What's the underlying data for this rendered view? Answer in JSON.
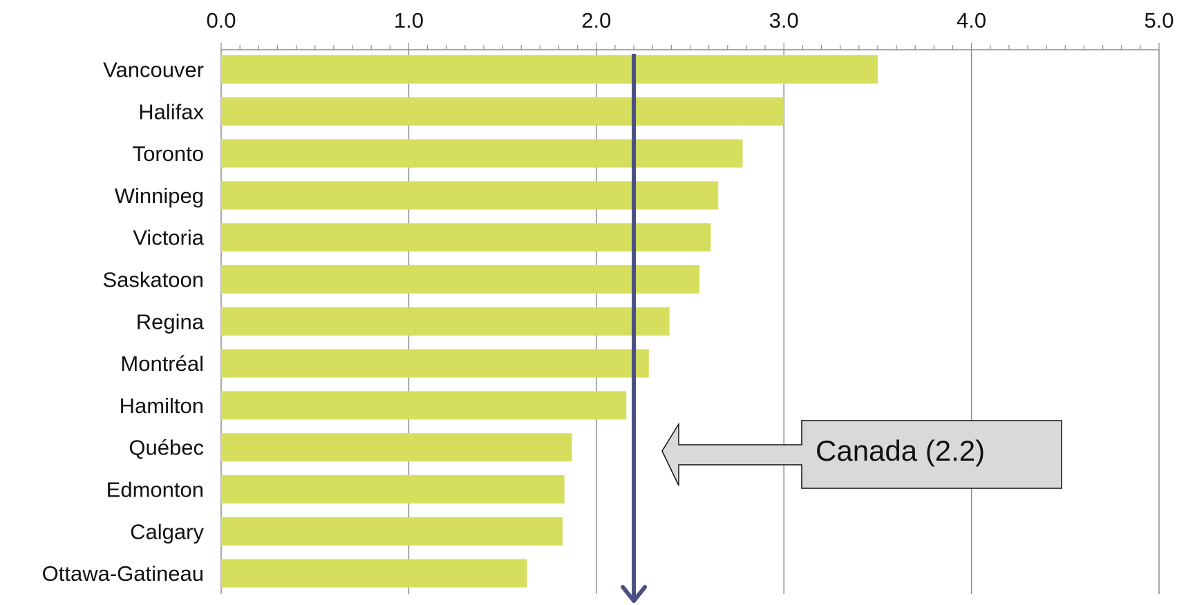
{
  "chart_data": {
    "type": "bar",
    "orientation": "horizontal",
    "categories": [
      "Vancouver",
      "Halifax",
      "Toronto",
      "Winnipeg",
      "Victoria",
      "Saskatoon",
      "Regina",
      "Montréal",
      "Hamilton",
      "Québec",
      "Edmonton",
      "Calgary",
      "Ottawa-Gatineau"
    ],
    "values": [
      3.5,
      3.0,
      2.78,
      2.65,
      2.61,
      2.55,
      2.39,
      2.28,
      2.16,
      1.87,
      1.83,
      1.82,
      1.63
    ],
    "xlim": [
      0,
      5
    ],
    "x_ticks": [
      "0.0",
      "1.0",
      "2.0",
      "3.0",
      "4.0",
      "5.0"
    ],
    "x_axis_position": "top",
    "grid": "vertical major gridlines",
    "reference": {
      "value": 2.2,
      "label": "Canada (2.2)"
    },
    "colors": {
      "bar": "#d6df5d",
      "reference_line": "#4a4f85",
      "callout_fill": "#d9d9d9",
      "grid": "#8c8c8c"
    }
  }
}
